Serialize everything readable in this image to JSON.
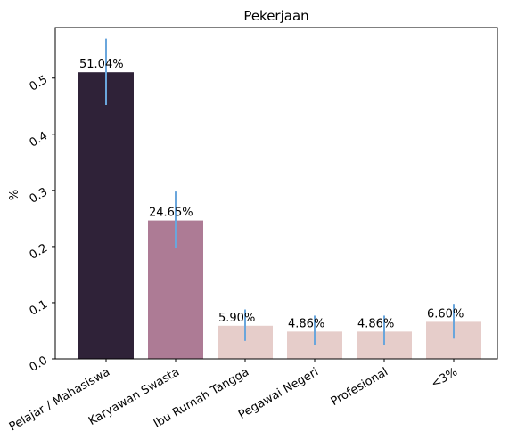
{
  "chart_data": {
    "type": "bar",
    "title": "Pekerjaan",
    "ylabel": "%",
    "xlabel": "",
    "ylim": [
      0,
      0.59
    ],
    "yticks": [
      0.0,
      0.1,
      0.2,
      0.3,
      0.4,
      0.5
    ],
    "ytick_labels": [
      "0.0",
      "0.1",
      "0.2",
      "0.3",
      "0.4",
      "0.5"
    ],
    "categories": [
      "Pelajar / Mahasiswa",
      "Karyawan Swasta",
      "Ibu Rumah Tangga",
      "Pegawai Negeri",
      "Profesional",
      "<3%"
    ],
    "values": [
      0.5104,
      0.2465,
      0.059,
      0.0486,
      0.0486,
      0.066
    ],
    "data_labels": [
      "51.04%",
      "24.65%",
      "5.90%",
      "4.86%",
      "4.86%",
      "6.60%"
    ],
    "error_low": [
      0.452,
      0.197,
      0.032,
      0.024,
      0.024,
      0.036
    ],
    "error_high": [
      0.57,
      0.298,
      0.088,
      0.077,
      0.077,
      0.098
    ],
    "bar_colors": [
      "#2f2238",
      "#ad7b95",
      "#e6cdca",
      "#e6cdca",
      "#e6cdca",
      "#e6cdca"
    ],
    "error_color": "#6aa6dc",
    "grid": false,
    "legend": "none"
  }
}
